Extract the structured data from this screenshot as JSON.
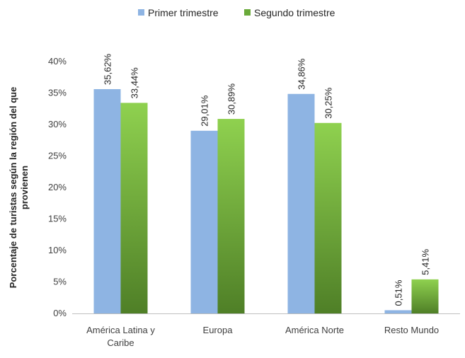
{
  "chart_data": {
    "type": "bar",
    "categories": [
      "América Latina y Caribe",
      "Europa",
      "América Norte",
      "Resto Mundo"
    ],
    "category_lines": [
      [
        "América Latina y",
        "Caribe"
      ],
      [
        "Europa"
      ],
      [
        "América Norte"
      ],
      [
        "Resto Mundo"
      ]
    ],
    "series": [
      {
        "name": "Primer trimestre",
        "values": [
          35.62,
          29.01,
          34.86,
          0.51
        ],
        "labels": [
          "35,62%",
          "29,01%",
          "34,86%",
          "0,51%"
        ],
        "color": "#8eb4e3"
      },
      {
        "name": "Segundo trimestre",
        "values": [
          33.44,
          30.89,
          30.25,
          5.41
        ],
        "labels": [
          "33,44%",
          "30,89%",
          "30,25%",
          "5,41%"
        ],
        "color_top": "#8fd14f",
        "color_bottom": "#4f7f27"
      }
    ],
    "ylabel_lines": [
      "Porcentaje de turistas según la región del que",
      "provienen"
    ],
    "ylim": [
      0,
      40
    ],
    "yticks": [
      "0%",
      "5%",
      "10%",
      "15%",
      "20%",
      "25%",
      "30%",
      "35%",
      "40%"
    ],
    "legend_position": "top",
    "grid": false,
    "data_labels": true
  }
}
